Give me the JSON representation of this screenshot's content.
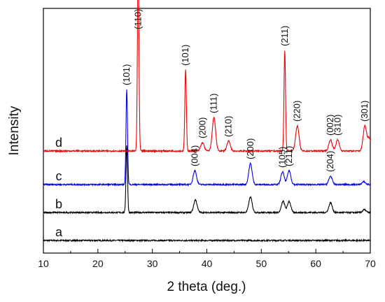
{
  "chart_data": {
    "type": "line",
    "xlabel": "2 theta (deg.)",
    "ylabel": "Intensity",
    "xlim": [
      10,
      70
    ],
    "xticks": [
      "10",
      "20",
      "30",
      "40",
      "50",
      "60",
      "70"
    ],
    "y_tick_labels": false,
    "grid": false,
    "series": [
      {
        "name": "a",
        "color": "#000000",
        "baseline": 0.0,
        "peaks": []
      },
      {
        "name": "b",
        "color": "#000000",
        "baseline": 1.0,
        "peaks": [
          {
            "x": 25.3,
            "h": 2.4
          },
          {
            "x": 37.9,
            "h": 0.45
          },
          {
            "x": 48.0,
            "h": 0.55
          },
          {
            "x": 54.0,
            "h": 0.4
          },
          {
            "x": 55.1,
            "h": 0.4
          },
          {
            "x": 62.7,
            "h": 0.35
          },
          {
            "x": 68.9,
            "h": 0.1
          }
        ]
      },
      {
        "name": "c",
        "color": "#0000ee",
        "baseline": 2.0,
        "peaks": [
          {
            "x": 25.3,
            "h": 3.4,
            "label": "(101)"
          },
          {
            "x": 37.8,
            "h": 0.5,
            "label": "(004)"
          },
          {
            "x": 48.0,
            "h": 0.75,
            "label": "(200)"
          },
          {
            "x": 53.9,
            "h": 0.45,
            "label": "(105)"
          },
          {
            "x": 55.1,
            "h": 0.5,
            "label": "(211)"
          },
          {
            "x": 62.7,
            "h": 0.3,
            "label": "(204)"
          },
          {
            "x": 68.8,
            "h": 0.1
          }
        ]
      },
      {
        "name": "d",
        "color": "#ee0000",
        "baseline": 3.2,
        "peaks": [
          {
            "x": 27.4,
            "h": 6.7,
            "label": "(110)"
          },
          {
            "x": 36.1,
            "h": 2.9,
            "label": "(101)"
          },
          {
            "x": 39.2,
            "h": 0.3,
            "label": "(200)"
          },
          {
            "x": 41.3,
            "h": 1.2,
            "label": "(111)"
          },
          {
            "x": 44.0,
            "h": 0.35,
            "label": "(210)"
          },
          {
            "x": 54.3,
            "h": 3.6,
            "label": "(211)"
          },
          {
            "x": 56.6,
            "h": 0.9,
            "label": "(220)"
          },
          {
            "x": 62.7,
            "h": 0.4,
            "label": "(002)"
          },
          {
            "x": 64.0,
            "h": 0.4,
            "label": "(310)"
          },
          {
            "x": 69.0,
            "h": 0.9,
            "label": "(301)"
          },
          {
            "x": 69.8,
            "h": 0.45
          }
        ]
      }
    ]
  }
}
